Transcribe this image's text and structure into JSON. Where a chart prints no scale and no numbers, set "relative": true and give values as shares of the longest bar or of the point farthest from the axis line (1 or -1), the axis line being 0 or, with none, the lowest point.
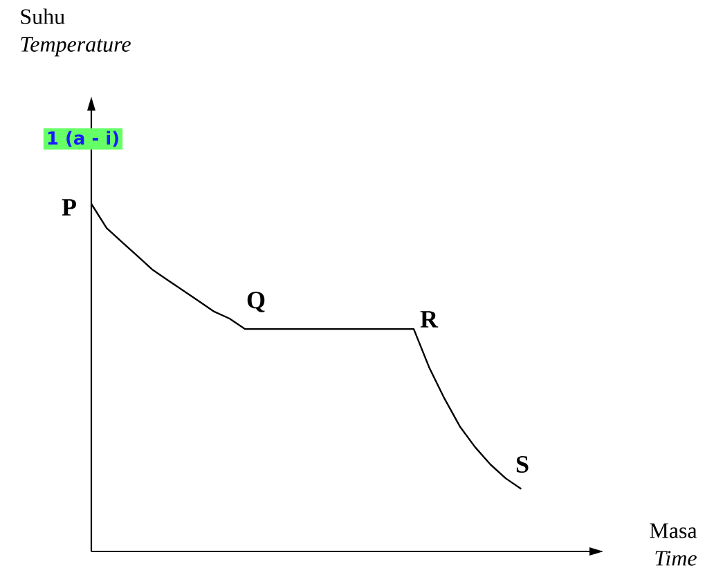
{
  "chart_data": {
    "type": "line",
    "relative": true,
    "annotations": [
      "Suhu *Temperature*",
      "Masa *Time*",
      "1 (a - i)",
      "P",
      "Q",
      "R",
      "S"
    ],
    "categories": [
      null,
      null,
      null,
      null,
      null,
      null,
      null,
      null,
      null,
      null,
      null,
      null,
      null,
      null,
      null,
      null,
      null,
      null,
      null,
      null,
      null,
      null,
      null,
      null,
      null,
      null,
      null,
      null,
      null
    ],
    "color": "#000000",
    "values": [
      1,
      0.93,
      0.89,
      0.85,
      0.81,
      0.78,
      0.75,
      0.72,
      0.69,
      0.67,
      0.64,
      0.64,
      0.64,
      0.64,
      0.64,
      0.64,
      0.64,
      0.64,
      0.64,
      0.64,
      0.64,
      0.64,
      0.53,
      0.44,
      0.36,
      0.3,
      0.25,
      0.21,
      0.18
    ]
  }
}
